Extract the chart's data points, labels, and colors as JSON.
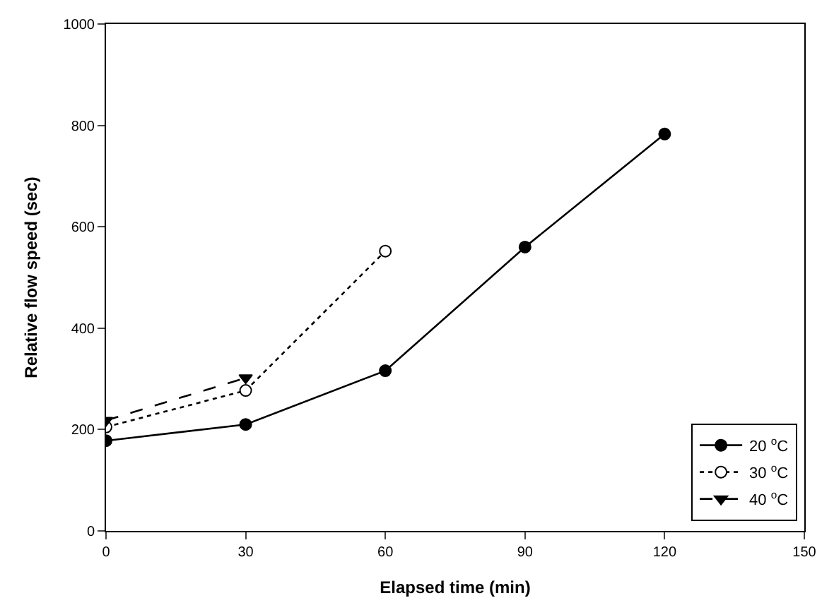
{
  "chart_data": {
    "type": "line",
    "xlabel": "Elapsed time (min)",
    "ylabel": "Relative flow speed (sec)",
    "xlim": [
      0,
      150
    ],
    "xticks": [
      0,
      30,
      60,
      90,
      120,
      150
    ],
    "ylim": [
      0,
      1000
    ],
    "yticks": [
      0,
      200,
      400,
      600,
      800,
      1000
    ],
    "legend": "bottom right",
    "series": [
      {
        "name": "20 $^{o}$C",
        "color": "#000000",
        "x": [
          0,
          30,
          60,
          90,
          120
        ],
        "values": [
          178,
          210,
          316,
          560,
          783
        ],
        "marker": "circle",
        "line_style": "solid"
      },
      {
        "name": "30 $^{o}$C",
        "color": "#000000",
        "x": [
          0,
          30,
          60
        ],
        "values": [
          205,
          277,
          552
        ],
        "marker": "circle-open",
        "line_style": "dotted"
      },
      {
        "name": "40 $^{o}$C",
        "color": "#000000",
        "x": [
          0,
          30
        ],
        "values": [
          218,
          302
        ],
        "marker": "triangle",
        "line_style": "dashed"
      }
    ]
  }
}
